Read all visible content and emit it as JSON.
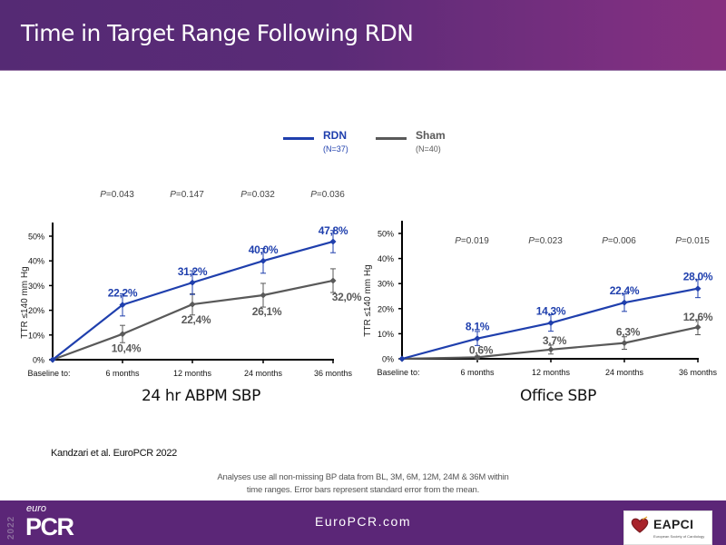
{
  "header": {
    "title": "Time in Target Range Following RDN"
  },
  "legend": {
    "items": [
      {
        "name": "RDN",
        "n": "(N=37)",
        "color": "#1f3fad"
      },
      {
        "name": "Sham",
        "n": "(N=40)",
        "color": "#595959"
      }
    ]
  },
  "chart_data": [
    {
      "type": "line",
      "title": "24 hr ABPM SBP",
      "xlabel": "",
      "ylabel": "TTR ≤140 mm Hg",
      "categories": [
        "Baseline to:",
        "6 months",
        "12 months",
        "24 months",
        "36 months"
      ],
      "yticks": [
        "0%",
        "10%",
        "20%",
        "30%",
        "40%",
        "50%"
      ],
      "ylim": [
        0,
        50
      ],
      "grid": false,
      "series": [
        {
          "name": "RDN",
          "color": "#1f3fad",
          "values": [
            0,
            22.2,
            31.2,
            40.0,
            47.8
          ],
          "labels": [
            "",
            "22,2%",
            "31,2%",
            "40,0%",
            "47,8%"
          ],
          "errors": [
            0,
            4.5,
            4.8,
            5.0,
            4.5
          ]
        },
        {
          "name": "Sham",
          "color": "#595959",
          "values": [
            0,
            10.4,
            22.4,
            26.1,
            32.0
          ],
          "labels": [
            "",
            "10,4%",
            "22,4%",
            "26,1%",
            "32,0%"
          ],
          "errors": [
            0,
            3.5,
            4.3,
            4.8,
            4.8
          ]
        }
      ],
      "pvalues": [
        "0.043",
        "0.147",
        "0.032",
        "0.036"
      ],
      "pvalue_prefix": "P",
      "pvalue_eq": "="
    },
    {
      "type": "line",
      "title": "Office SBP",
      "xlabel": "",
      "ylabel": "TTR ≤140 mm Hg",
      "categories": [
        "Baseline to:",
        "6 months",
        "12 months",
        "24 months",
        "36 months"
      ],
      "yticks": [
        "0%",
        "10%",
        "20%",
        "30%",
        "40%",
        "50%"
      ],
      "ylim": [
        0,
        50
      ],
      "grid": false,
      "series": [
        {
          "name": "RDN",
          "color": "#1f3fad",
          "values": [
            0,
            8.1,
            14.3,
            22.4,
            28.0
          ],
          "labels": [
            "",
            "8,1%",
            "14,3%",
            "22,4%",
            "28,0%"
          ],
          "errors": [
            0,
            2.8,
            3.3,
            3.5,
            3.6
          ]
        },
        {
          "name": "Sham",
          "color": "#595959",
          "values": [
            0,
            0.6,
            3.7,
            6.3,
            12.6
          ],
          "labels": [
            "",
            "0,6%",
            "3,7%",
            "6,3%",
            "12,6%"
          ],
          "errors": [
            0,
            0.5,
            1.8,
            2.5,
            3.0
          ]
        }
      ],
      "pvalues": [
        "0.019",
        "0.023",
        "0.006",
        "0.015"
      ],
      "pvalue_prefix": "P",
      "pvalue_eq": "="
    }
  ],
  "citation": "Kandzari et al. EuroPCR 2022",
  "footnote": {
    "line1": "Analyses use all non-missing BP data from BL, 3M, 6M, 12M, 24M & 36M within",
    "line2": "time ranges. Error bars represent standard error from the mean."
  },
  "footer": {
    "logo_year": "2022",
    "logo_euro": "euro",
    "logo_pcr": "PCR",
    "url": "EuroPCR.com",
    "partner_name": "EAPCI",
    "partner_sub": "European Society of Cardiology"
  }
}
